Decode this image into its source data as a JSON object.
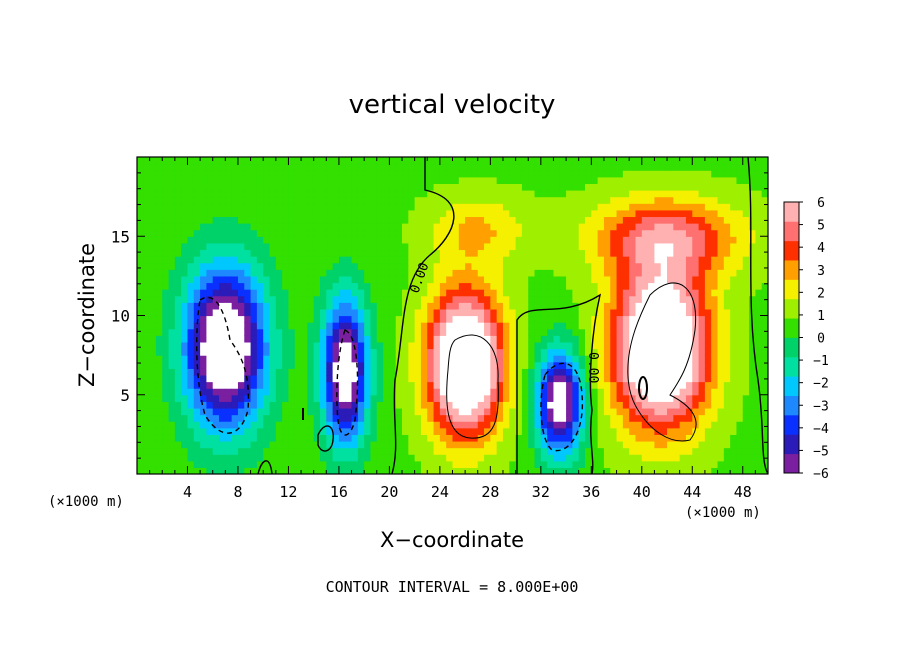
{
  "chart_data": {
    "type": "heatmap",
    "title": "vertical velocity",
    "xlabel": "X−coordinate",
    "ylabel": "Z−coordinate",
    "x_unit": "(×1000 m)",
    "x_unit_right": "(×1000 m)",
    "xlim": [
      0,
      50
    ],
    "ylim": [
      0,
      20
    ],
    "x_ticks": [
      4,
      8,
      12,
      16,
      20,
      24,
      28,
      32,
      36,
      40,
      44,
      48
    ],
    "y_ticks": [
      5,
      10,
      15
    ],
    "colorbar": {
      "levels": [
        "6",
        "5",
        "4",
        "3",
        "2",
        "1",
        "0",
        "−1",
        "−2",
        "−3",
        "−4",
        "−5",
        "−6"
      ],
      "range": [
        -6,
        6
      ],
      "colors": [
        "#7a1fa0",
        "#2b1bb8",
        "#0a30ff",
        "#1e88ff",
        "#00c8ff",
        "#00e0a0",
        "#00d26a",
        "#33e000",
        "#9ef000",
        "#f4f000",
        "#ffa000",
        "#ff3000",
        "#ff7070",
        "#ffb0b0"
      ]
    },
    "contour_labels": [
      "0.00",
      "0.00"
    ],
    "footer": "CONTOUR INTERVAL = 8.000E+00",
    "features": [
      {
        "sign": "negative",
        "x": 7,
        "z": 8,
        "sx": 3.2,
        "sz": 5,
        "amp": -9
      },
      {
        "sign": "negative",
        "x": 16.5,
        "z": 6.5,
        "sx": 1.8,
        "sz": 4.5,
        "amp": -8
      },
      {
        "sign": "negative",
        "x": 33.5,
        "z": 4.5,
        "sx": 1.8,
        "sz": 3.2,
        "amp": -8
      },
      {
        "sign": "positive",
        "x": 26,
        "z": 7,
        "sx": 3,
        "sz": 4.5,
        "amp": 9
      },
      {
        "sign": "positive",
        "x": 41.5,
        "z": 8,
        "sx": 3.8,
        "sz": 5,
        "amp": 9
      },
      {
        "sign": "positive",
        "x": 42,
        "z": 15,
        "sx": 6,
        "sz": 2.5,
        "amp": 4
      },
      {
        "sign": "positive",
        "x": 27,
        "z": 15.5,
        "sx": 4,
        "sz": 2.2,
        "amp": 2
      }
    ]
  }
}
